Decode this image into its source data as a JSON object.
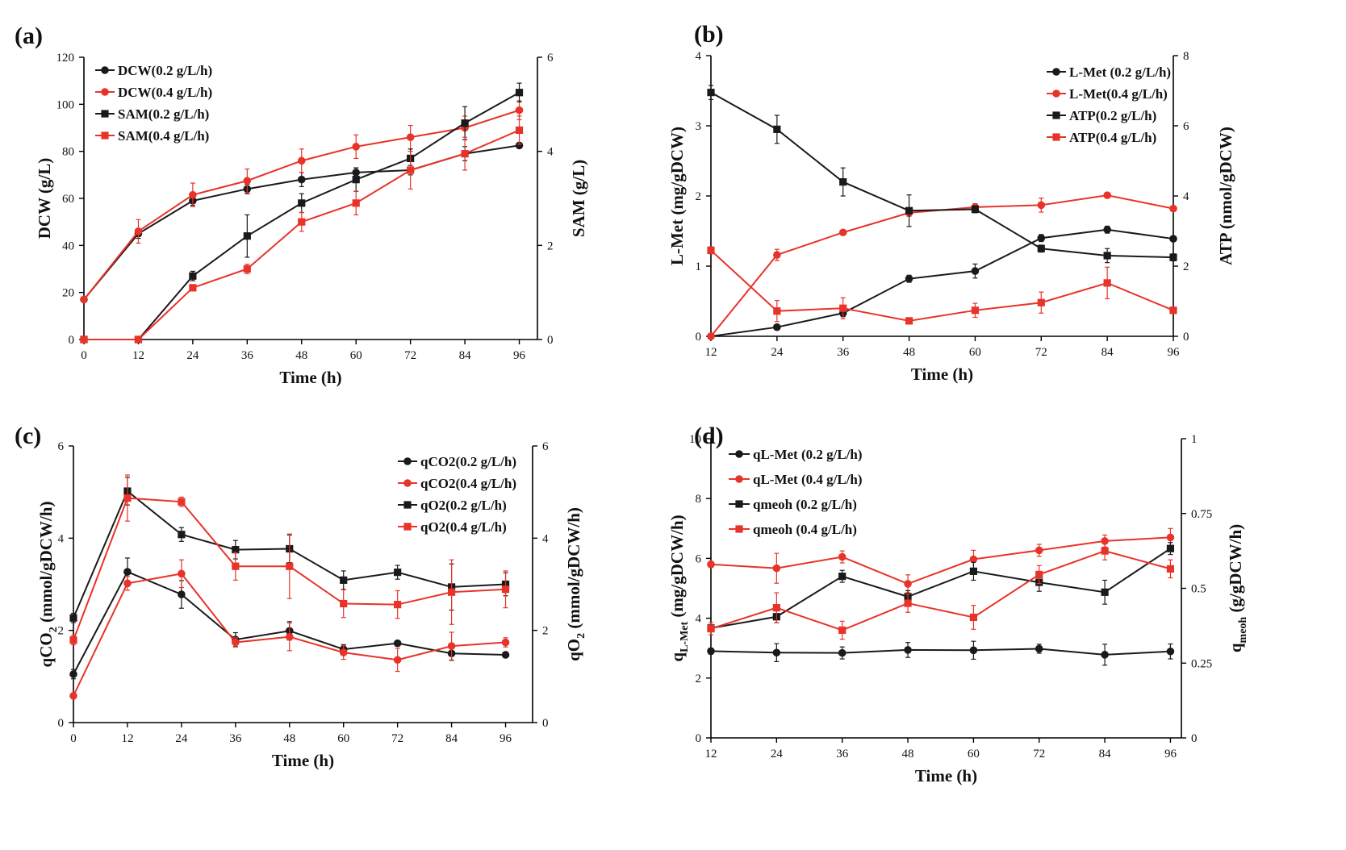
{
  "colors": {
    "black": "#1a1a1a",
    "red": "#e8332a"
  },
  "chart_data": [
    {
      "id": "a",
      "panel_label": "(a)",
      "type": "line",
      "xlabel": "Time (h)",
      "ylabel": "DCW (g/L)",
      "y2label": "SAM (g/L)",
      "x_ticks": [
        0,
        12,
        24,
        36,
        48,
        60,
        72,
        84,
        96
      ],
      "xlim": [
        0,
        100
      ],
      "ylim": [
        0,
        120
      ],
      "y_ticks": [
        0,
        20,
        40,
        60,
        80,
        100,
        120
      ],
      "y2lim": [
        0,
        6
      ],
      "y2_ticks": [
        0,
        2,
        4,
        6
      ],
      "legend_position": "top-left",
      "series": [
        {
          "name": "DCW(0.2 g/L/h)",
          "axis": "left",
          "color": "black",
          "marker": "circle",
          "x": [
            0,
            12,
            24,
            36,
            48,
            60,
            72,
            84,
            96
          ],
          "y": [
            17,
            45,
            59,
            64,
            68,
            71,
            72,
            79,
            82.5
          ],
          "err": [
            0,
            2,
            2,
            2,
            3,
            2,
            2,
            3,
            0
          ]
        },
        {
          "name": "DCW(0.4 g/L/h)",
          "axis": "left",
          "color": "red",
          "marker": "circle",
          "x": [
            0,
            12,
            24,
            36,
            48,
            60,
            72,
            84,
            96
          ],
          "y": [
            17,
            46,
            61.5,
            67.5,
            76,
            82,
            86,
            90,
            97.5
          ],
          "err": [
            0,
            5,
            5,
            5,
            5,
            5,
            5,
            5,
            4
          ]
        },
        {
          "name": "SAM(0.2 g/L/h)",
          "axis": "right",
          "color": "black",
          "marker": "square",
          "x": [
            0,
            12,
            24,
            36,
            48,
            60,
            72,
            84,
            96
          ],
          "y": [
            0,
            0,
            1.35,
            2.2,
            2.9,
            3.4,
            3.85,
            4.6,
            5.25
          ],
          "err": [
            0,
            0,
            0.1,
            0.45,
            0.2,
            0.25,
            0.2,
            0.35,
            0.2
          ]
        },
        {
          "name": "SAM(0.4 g/L/h)",
          "axis": "right",
          "color": "red",
          "marker": "square",
          "x": [
            0,
            12,
            24,
            36,
            48,
            60,
            72,
            84,
            96
          ],
          "y": [
            0,
            0,
            1.1,
            1.5,
            2.5,
            2.9,
            3.6,
            3.95,
            4.45
          ],
          "err": [
            0,
            0,
            0,
            0.1,
            0.2,
            0.25,
            0.4,
            0.35,
            0.3
          ]
        }
      ]
    },
    {
      "id": "b",
      "panel_label": "(b)",
      "type": "line",
      "xlabel": "Time (h)",
      "ylabel": "L-Met (mg/gDCW)",
      "y2label": "ATP (nmol/gDCW)",
      "x_ticks": [
        12,
        24,
        36,
        48,
        60,
        72,
        84,
        96
      ],
      "xlim": [
        12,
        96
      ],
      "ylim": [
        0,
        4
      ],
      "y_ticks": [
        0,
        1,
        2,
        3,
        4
      ],
      "y2lim": [
        0,
        8
      ],
      "y2_ticks": [
        0,
        2,
        4,
        6,
        8
      ],
      "legend_position": "top-right",
      "series": [
        {
          "name": "L-Met (0.2 g/L/h)",
          "axis": "left",
          "color": "black",
          "marker": "circle",
          "x": [
            12,
            24,
            36,
            48,
            60,
            72,
            84,
            96
          ],
          "y": [
            0,
            0.13,
            0.33,
            0.82,
            0.93,
            1.4,
            1.52,
            1.39
          ],
          "err": [
            0,
            0.03,
            0.05,
            0.05,
            0.1,
            0.05,
            0.05,
            0.03
          ]
        },
        {
          "name": "L-Met(0.4 g/L/h)",
          "axis": "left",
          "color": "red",
          "marker": "circle",
          "x": [
            12,
            24,
            36,
            48,
            60,
            72,
            84,
            96
          ],
          "y": [
            0,
            1.16,
            1.48,
            1.76,
            1.84,
            1.87,
            2.01,
            1.82
          ],
          "err": [
            0,
            0.08,
            0.03,
            0.05,
            0.05,
            0.1,
            0.03,
            0.03
          ]
        },
        {
          "name": "ATP(0.2 g/L/h)",
          "axis": "right",
          "color": "black",
          "marker": "square",
          "x": [
            12,
            24,
            36,
            48,
            60,
            72,
            84,
            96
          ],
          "y": [
            6.95,
            5.9,
            4.4,
            3.58,
            3.62,
            2.5,
            2.3,
            2.25
          ],
          "err": [
            0.2,
            0.4,
            0.4,
            0.45,
            0.1,
            0.1,
            0.2,
            0.1
          ]
        },
        {
          "name": "ATP(0.4 g/L/h)",
          "axis": "right",
          "color": "red",
          "marker": "square",
          "x": [
            12,
            24,
            36,
            48,
            60,
            72,
            84,
            96
          ],
          "y": [
            2.45,
            0.72,
            0.8,
            0.44,
            0.74,
            0.96,
            1.52,
            0.74
          ],
          "err": [
            0.1,
            0.3,
            0.3,
            0.05,
            0.2,
            0.3,
            0.45,
            0.05
          ]
        }
      ]
    },
    {
      "id": "c",
      "panel_label": "(c)",
      "type": "line",
      "xlabel": "Time (h)",
      "ylabel_main": "qCO",
      "ylabel_sub": "2",
      "ylabel_tail": " (mmol/gDCW/h)",
      "y2label_main": "qO",
      "y2label_sub": "2",
      "y2label_tail": " (mmol/gDCW/h)",
      "x_ticks": [
        0,
        12,
        24,
        36,
        48,
        60,
        72,
        84,
        96
      ],
      "xlim": [
        0,
        102
      ],
      "ylim": [
        0,
        6
      ],
      "y_ticks": [
        0,
        2,
        4,
        6
      ],
      "y2lim": [
        0,
        6
      ],
      "y2_ticks": [
        0,
        2,
        4,
        6
      ],
      "legend_position": "top-right",
      "series": [
        {
          "name": "qCO2(0.2 g/L/h)",
          "axis": "left",
          "color": "black",
          "marker": "circle",
          "x": [
            0,
            12,
            24,
            36,
            48,
            60,
            72,
            84,
            96
          ],
          "y": [
            1.05,
            3.27,
            2.78,
            1.8,
            1.99,
            1.59,
            1.72,
            1.5,
            1.47
          ],
          "err": [
            0.1,
            0.3,
            0.3,
            0.15,
            0.2,
            0.1,
            0.05,
            0.15,
            0.05
          ]
        },
        {
          "name": "qCO2(0.4 g/L/h)",
          "axis": "left",
          "color": "red",
          "marker": "circle",
          "x": [
            0,
            12,
            24,
            36,
            48,
            60,
            72,
            84,
            96
          ],
          "y": [
            0.58,
            3.02,
            3.23,
            1.74,
            1.86,
            1.52,
            1.36,
            1.66,
            1.74
          ],
          "err": [
            0.05,
            0.15,
            0.3,
            0.1,
            0.3,
            0.15,
            0.25,
            0.3,
            0.1
          ]
        },
        {
          "name": "qO2(0.2 g/L/h)",
          "axis": "right",
          "color": "black",
          "marker": "square",
          "x": [
            0,
            12,
            24,
            36,
            48,
            60,
            72,
            84,
            96
          ],
          "y": [
            2.27,
            5.02,
            4.08,
            3.75,
            3.77,
            3.09,
            3.26,
            2.94,
            3.0
          ],
          "err": [
            0.1,
            0.3,
            0.15,
            0.2,
            0.3,
            0.2,
            0.15,
            0.5,
            0.25
          ]
        },
        {
          "name": "qO2(0.4 g/L/h)",
          "axis": "right",
          "color": "red",
          "marker": "square",
          "x": [
            0,
            12,
            24,
            36,
            48,
            60,
            72,
            84,
            96
          ],
          "y": [
            1.79,
            4.87,
            4.79,
            3.39,
            3.39,
            2.58,
            2.56,
            2.83,
            2.89
          ],
          "err": [
            0.1,
            0.5,
            0.1,
            0.3,
            0.7,
            0.3,
            0.3,
            0.7,
            0.4
          ]
        }
      ]
    },
    {
      "id": "d",
      "panel_label": "(d)",
      "type": "line",
      "xlabel": "Time (h)",
      "ylabel_main": "q",
      "ylabel_sub": "L-Met",
      "ylabel_tail": " (mg/gDCW/h)",
      "y2label_main": "q",
      "y2label_sub": "meoh",
      "y2label_tail": " (g/gDCW/h)",
      "x_ticks": [
        12,
        24,
        36,
        48,
        60,
        72,
        84,
        96
      ],
      "xlim": [
        12,
        98
      ],
      "ylim": [
        0,
        10
      ],
      "y_ticks": [
        0,
        2,
        4,
        6,
        8,
        10
      ],
      "y2lim": [
        0,
        1
      ],
      "y2_ticks": [
        0,
        0.25,
        0.5,
        0.75,
        1
      ],
      "legend_position": "top-left",
      "series": [
        {
          "name": "qL-Met (0.2 g/L/h)",
          "axis": "left",
          "color": "black",
          "marker": "circle",
          "x": [
            12,
            24,
            36,
            48,
            60,
            72,
            84,
            96
          ],
          "y": [
            2.9,
            2.85,
            2.84,
            2.94,
            2.93,
            2.98,
            2.78,
            2.89
          ],
          "err": [
            0.1,
            0.3,
            0.2,
            0.25,
            0.3,
            0.15,
            0.35,
            0.25
          ]
        },
        {
          "name": "qL-Met (0.4 g/L/h)",
          "axis": "left",
          "color": "red",
          "marker": "circle",
          "x": [
            12,
            24,
            36,
            48,
            60,
            72,
            84,
            96
          ],
          "y": [
            5.8,
            5.67,
            6.05,
            5.15,
            5.97,
            6.27,
            6.58,
            6.7
          ],
          "err": [
            0.1,
            0.5,
            0.2,
            0.3,
            0.3,
            0.2,
            0.2,
            0.3
          ]
        },
        {
          "name": "qmeoh (0.2 g/L/h)",
          "axis": "right",
          "color": "black",
          "marker": "square",
          "x": [
            12,
            24,
            36,
            48,
            60,
            72,
            84,
            96
          ],
          "y": [
            0.367,
            0.405,
            0.54,
            0.472,
            0.557,
            0.52,
            0.487,
            0.633
          ],
          "err": [
            0.01,
            0.02,
            0.02,
            0.02,
            0.03,
            0.03,
            0.04,
            0.02
          ]
        },
        {
          "name": "qmeoh (0.4 g/L/h)",
          "axis": "right",
          "color": "red",
          "marker": "square",
          "x": [
            12,
            24,
            36,
            48,
            60,
            72,
            84,
            96
          ],
          "y": [
            0.365,
            0.435,
            0.36,
            0.45,
            0.403,
            0.546,
            0.625,
            0.565
          ],
          "err": [
            0.02,
            0.05,
            0.03,
            0.03,
            0.04,
            0.03,
            0.03,
            0.03
          ]
        }
      ]
    }
  ]
}
